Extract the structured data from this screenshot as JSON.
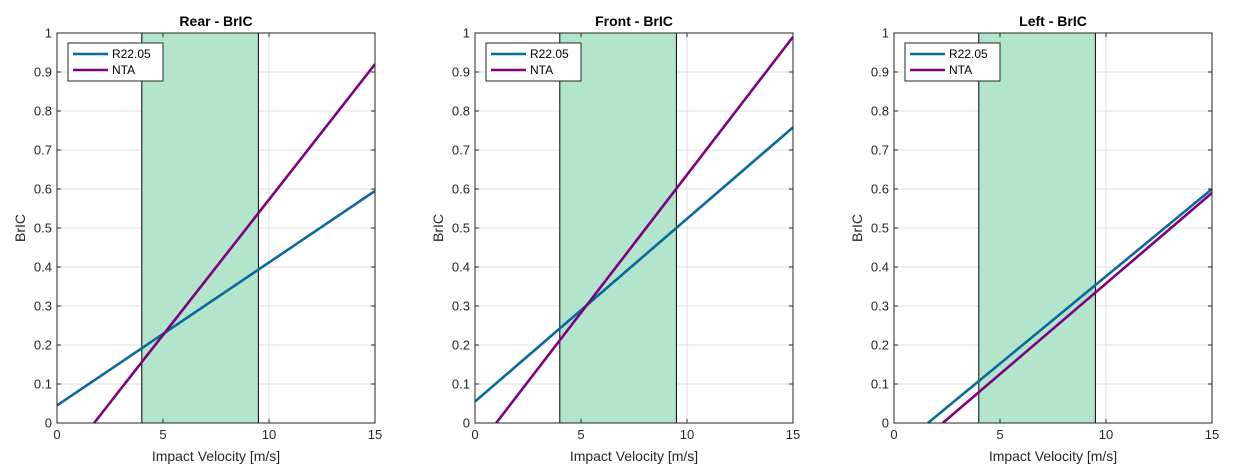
{
  "colors": {
    "series_1": "#0a6a9a",
    "series_2": "#800080",
    "band_fill": "#b3e5cc",
    "band_edge": "#000000",
    "grid": "#dfdfdf",
    "axis": "#262626",
    "background": "#ffffff"
  },
  "chart_data": [
    {
      "type": "line",
      "title": "Rear - BrIC",
      "xlabel": "Impact Velocity [m/s]",
      "ylabel": "BrIC",
      "xlim": [
        0,
        15
      ],
      "ylim": [
        0,
        1
      ],
      "xticks": [
        0,
        5,
        10,
        15
      ],
      "yticks": [
        0,
        0.1,
        0.2,
        0.3,
        0.4,
        0.5,
        0.6,
        0.7,
        0.8,
        0.9,
        1
      ],
      "grid": true,
      "legend_location": "top-left",
      "shaded_band": {
        "x_from": 4.0,
        "x_to": 9.5
      },
      "series": [
        {
          "name": "R22.05",
          "color": "#0a6a9a",
          "x": [
            0,
            15
          ],
          "y": [
            0.045,
            0.595
          ]
        },
        {
          "name": "NTA",
          "color": "#800080",
          "x": [
            1.75,
            15
          ],
          "y": [
            0.0,
            0.92
          ]
        }
      ]
    },
    {
      "type": "line",
      "title": "Front - BrIC",
      "xlabel": "Impact Velocity [m/s]",
      "ylabel": "BrIC",
      "xlim": [
        0,
        15
      ],
      "ylim": [
        0,
        1
      ],
      "xticks": [
        0,
        5,
        10,
        15
      ],
      "yticks": [
        0,
        0.1,
        0.2,
        0.3,
        0.4,
        0.5,
        0.6,
        0.7,
        0.8,
        0.9,
        1
      ],
      "grid": true,
      "legend_location": "top-left",
      "shaded_band": {
        "x_from": 4.0,
        "x_to": 9.5
      },
      "series": [
        {
          "name": "R22.05",
          "color": "#0a6a9a",
          "x": [
            0,
            15
          ],
          "y": [
            0.055,
            0.758
          ]
        },
        {
          "name": "NTA",
          "color": "#800080",
          "x": [
            1.0,
            15
          ],
          "y": [
            0.0,
            0.99
          ]
        }
      ]
    },
    {
      "type": "line",
      "title": "Left - BrIC",
      "xlabel": "Impact Velocity [m/s]",
      "ylabel": "BrIC",
      "xlim": [
        0,
        15
      ],
      "ylim": [
        0,
        1
      ],
      "xticks": [
        0,
        5,
        10,
        15
      ],
      "yticks": [
        0,
        0.1,
        0.2,
        0.3,
        0.4,
        0.5,
        0.6,
        0.7,
        0.8,
        0.9,
        1
      ],
      "grid": true,
      "legend_location": "top-left",
      "shaded_band": {
        "x_from": 4.0,
        "x_to": 9.5
      },
      "series": [
        {
          "name": "R22.05",
          "color": "#0a6a9a",
          "x": [
            1.6,
            15
          ],
          "y": [
            0.0,
            0.6
          ]
        },
        {
          "name": "NTA",
          "color": "#800080",
          "x": [
            2.3,
            15
          ],
          "y": [
            0.0,
            0.59
          ]
        }
      ]
    }
  ]
}
